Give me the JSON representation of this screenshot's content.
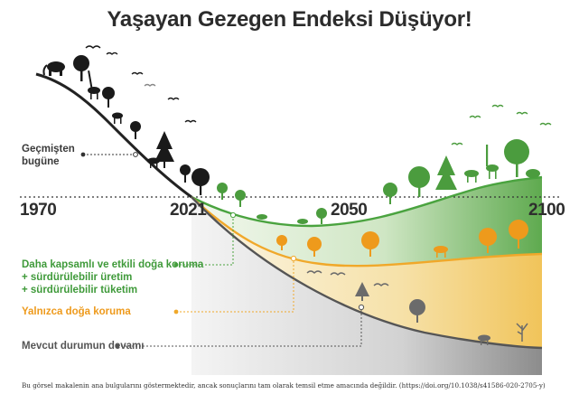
{
  "title": "Yaşayan Gezegen Endeksi Düşüyor!",
  "years": {
    "y1970": "1970",
    "y2021": "2021",
    "y2050": "2050",
    "y2100": "2100"
  },
  "past_label": {
    "line1": "Geçmişten",
    "line2": "bugüne"
  },
  "scenarios": {
    "integrated": {
      "line1": "Daha kapsamlı ve etkili doğa koruma",
      "line2": "+  sürdürülebilir üretim",
      "line3": "+  sürdürülebilir tüketim",
      "color": "#4aa33f"
    },
    "conservation_only": {
      "label": "Yalnızca doğa koruma",
      "color": "#f0a82a"
    },
    "business_as_usual": {
      "label": "Mevcut durumun devamı",
      "color": "#6b6b6b"
    }
  },
  "footnote": "Bu görsel makalenin ana bulgularını göstermektedir, ancak sonuçlarını tam olarak temsil etme amacında değildir. (https://doi.org/10.1038/s41586-020-2705-y)",
  "icons": [
    "elephant-icon",
    "giraffe-icon",
    "tree-icon",
    "bird-icon",
    "camel-icon",
    "fox-icon",
    "deer-icon",
    "fish-icon"
  ]
}
